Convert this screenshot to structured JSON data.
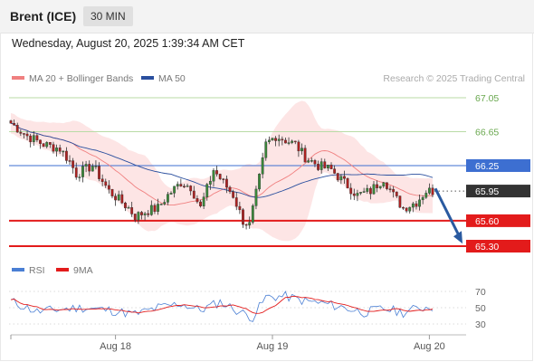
{
  "header": {
    "title": "Brent (ICE)",
    "timeframe": "30 MIN"
  },
  "datetime": "Wednesday, August 20, 2025 1:39:34 AM CET",
  "legend": {
    "ma20": {
      "label": "MA 20 + Bollinger Bands",
      "color": "#f08080"
    },
    "ma50": {
      "label": "MA 50",
      "color": "#2a4f9e"
    }
  },
  "copyright": "Research © 2025 Trading Central",
  "rsi_legend": {
    "rsi": {
      "label": "RSI",
      "color": "#4a7fd4"
    },
    "ma9": {
      "label": "9MA",
      "color": "#e31b1b"
    }
  },
  "chart_data": [
    {
      "type": "candlestick",
      "price_range": [
        65.2,
        67.15
      ],
      "levels": [
        {
          "value": 67.05,
          "label": "67.05",
          "kind": "target",
          "color": "#6aa84f"
        },
        {
          "value": 66.65,
          "label": "66.65",
          "kind": "target",
          "color": "#6aa84f"
        },
        {
          "value": 66.25,
          "label": "66.25",
          "kind": "pivot",
          "color": "#3d6fd1"
        },
        {
          "value": 65.95,
          "label": "65.95",
          "kind": "last",
          "color": "#333333"
        },
        {
          "value": 65.6,
          "label": "65.60",
          "kind": "support",
          "color": "#e31b1b"
        },
        {
          "value": 65.3,
          "label": "65.30",
          "kind": "support",
          "color": "#e31b1b"
        }
      ],
      "x_ticks": [
        {
          "label": "Aug 18",
          "index": 32
        },
        {
          "label": "Aug 19",
          "index": 80
        },
        {
          "label": "Aug 20",
          "index": 128
        }
      ],
      "candles_count": 130,
      "anchors": [
        [
          0,
          66.75
        ],
        [
          5,
          66.6
        ],
        [
          10,
          66.5
        ],
        [
          15,
          66.45
        ],
        [
          18,
          66.3
        ],
        [
          20,
          66.15
        ],
        [
          25,
          66.25
        ],
        [
          30,
          65.95
        ],
        [
          33,
          65.85
        ],
        [
          36,
          65.75
        ],
        [
          38,
          65.65
        ],
        [
          42,
          65.72
        ],
        [
          45,
          65.75
        ],
        [
          48,
          65.9
        ],
        [
          52,
          66.05
        ],
        [
          55,
          66.0
        ],
        [
          58,
          65.75
        ],
        [
          62,
          66.2
        ],
        [
          65,
          66.05
        ],
        [
          68,
          65.9
        ],
        [
          71,
          65.6
        ],
        [
          73,
          65.55
        ],
        [
          76,
          66.1
        ],
        [
          78,
          66.5
        ],
        [
          81,
          66.6
        ],
        [
          84,
          66.55
        ],
        [
          87,
          66.5
        ],
        [
          90,
          66.35
        ],
        [
          94,
          66.25
        ],
        [
          98,
          66.2
        ],
        [
          102,
          66.05
        ],
        [
          106,
          65.9
        ],
        [
          110,
          65.95
        ],
        [
          114,
          66.1
        ],
        [
          117,
          65.9
        ],
        [
          120,
          65.75
        ],
        [
          124,
          65.82
        ],
        [
          127,
          65.95
        ],
        [
          129,
          65.95
        ]
      ],
      "projection": {
        "from_value": 65.98,
        "to_value": 65.33
      }
    },
    {
      "type": "line",
      "title": "RSI",
      "y_ticks": [
        70,
        50,
        30
      ],
      "ylim": [
        20,
        80
      ],
      "anchors": [
        [
          0,
          58
        ],
        [
          8,
          45
        ],
        [
          15,
          48
        ],
        [
          22,
          50
        ],
        [
          30,
          47
        ],
        [
          38,
          42
        ],
        [
          45,
          50
        ],
        [
          52,
          55
        ],
        [
          58,
          47
        ],
        [
          64,
          57
        ],
        [
          70,
          45
        ],
        [
          74,
          38
        ],
        [
          78,
          63
        ],
        [
          84,
          64
        ],
        [
          90,
          58
        ],
        [
          96,
          55
        ],
        [
          102,
          50
        ],
        [
          108,
          44
        ],
        [
          114,
          49
        ],
        [
          120,
          44
        ],
        [
          125,
          50
        ],
        [
          129,
          51
        ]
      ]
    }
  ]
}
